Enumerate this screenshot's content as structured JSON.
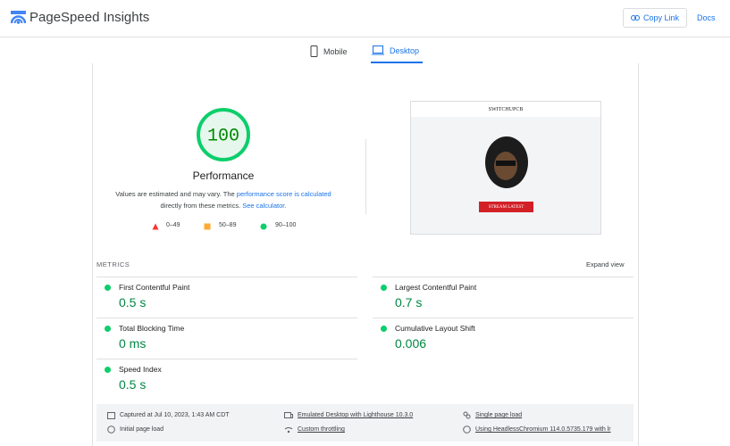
{
  "header": {
    "title": "PageSpeed Insights",
    "copy_link": "Copy Link",
    "docs": "Docs"
  },
  "tabs": [
    "Mobile",
    "Desktop"
  ],
  "score": {
    "value": 100,
    "label": "Performance",
    "note": [
      "Values are estimated and may vary. The",
      "performance score is calculated",
      "directly from these metrics.",
      "See calculator."
    ],
    "legend": [
      "0–49",
      "50–89",
      "90–100"
    ]
  },
  "screenshot": {
    "site_title": "SWITCHUPCB",
    "button": "STREAM LATEST"
  },
  "metrics": {
    "heading": "METRICS",
    "expand": "Expand view",
    "items": [
      {
        "name": "First Contentful Paint",
        "value": "0.5 s"
      },
      {
        "name": "Largest Contentful Paint",
        "value": "0.7 s"
      },
      {
        "name": "Total Blocking Time",
        "value": "0 ms"
      },
      {
        "name": "Cumulative Layout Shift",
        "value": "0.006"
      },
      {
        "name": "Speed Index",
        "value": "0.5 s"
      }
    ]
  },
  "footer": [
    "Captured at Jul 10, 2023, 1:43 AM CDT",
    "Initial page load",
    "Emulated Desktop with Lighthouse 10.3.0",
    "Custom throttling",
    "Single page load",
    "Using HeadlessChromium 114.0.5735.179 with lr"
  ]
}
